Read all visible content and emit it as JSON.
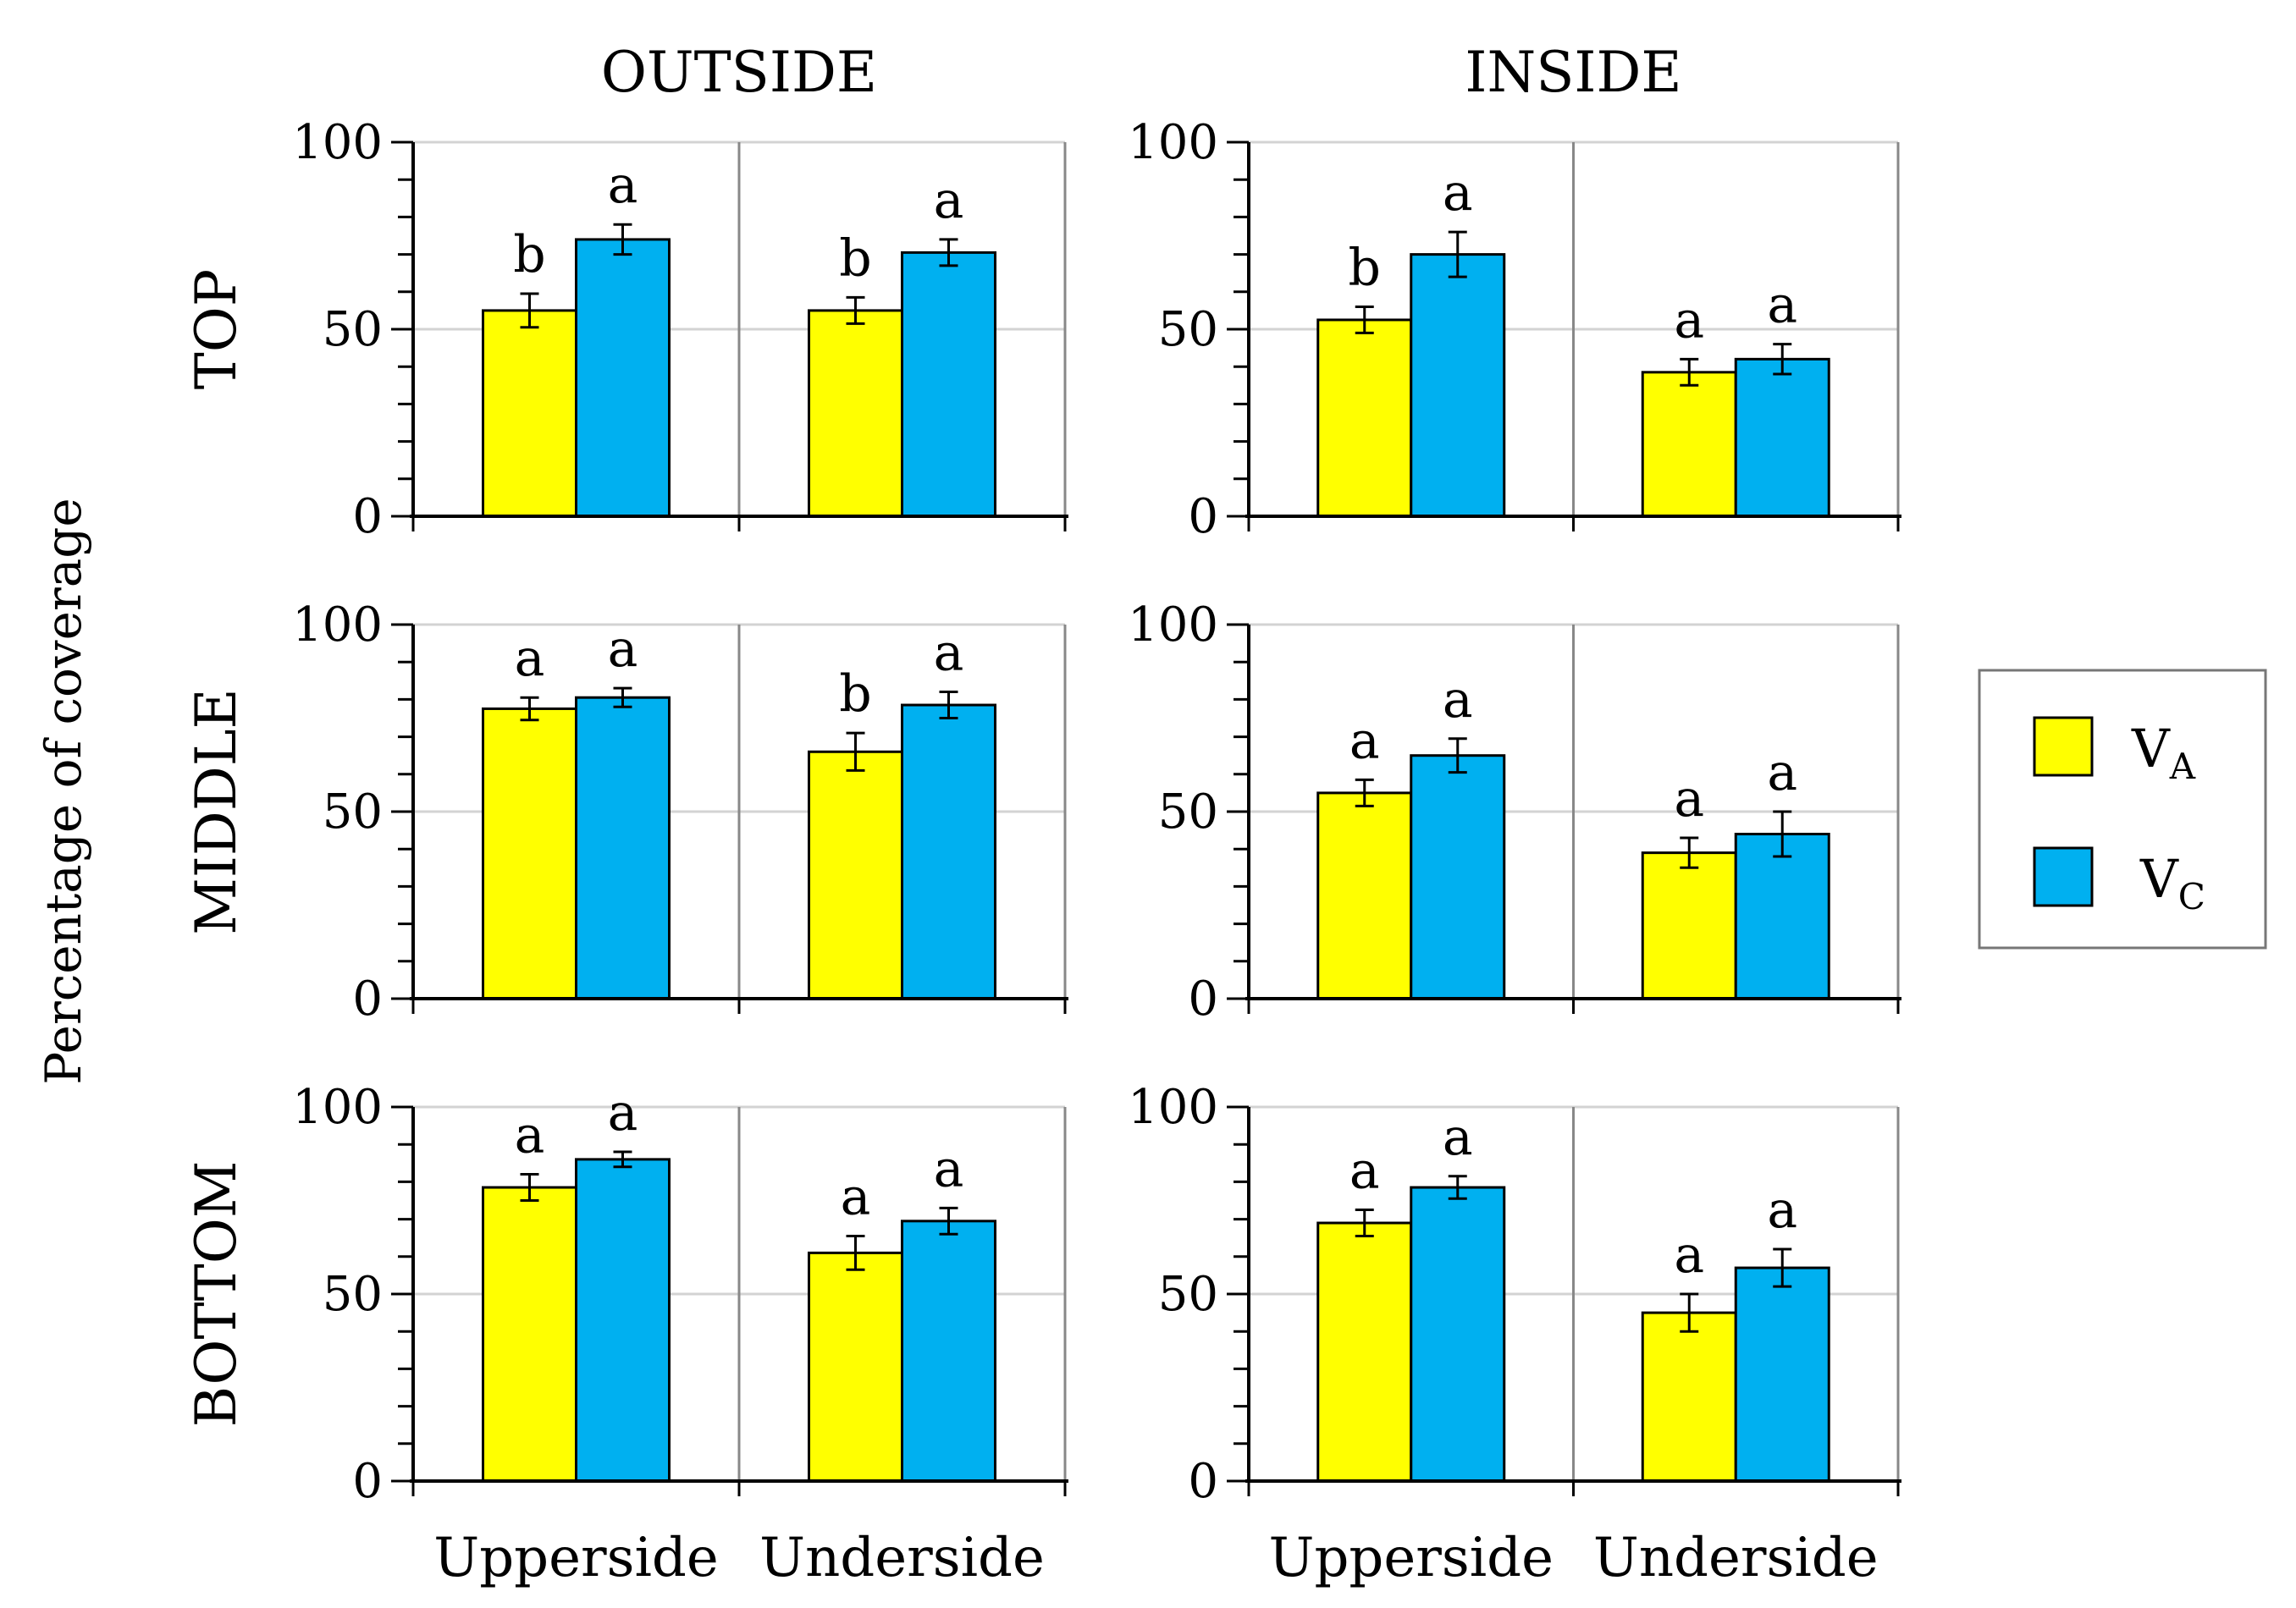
{
  "chart_data": {
    "type": "bar",
    "title": "",
    "ylabel": "Percentage of coverage",
    "ylim": [
      0,
      100
    ],
    "yticks": [
      0,
      50,
      100
    ],
    "col_titles": [
      "OUTSIDE",
      "INSIDE"
    ],
    "row_titles": [
      "TOP",
      "MIDDLE",
      "BOTTOM"
    ],
    "categories": [
      "Upperside",
      "Underside"
    ],
    "legend": [
      {
        "label": "V",
        "sub": "A",
        "color": "#ffff00"
      },
      {
        "label": "V",
        "sub": "C",
        "color": "#00b0f0"
      }
    ],
    "panels": [
      {
        "row": "TOP",
        "col": "OUTSIDE",
        "series": [
          {
            "name": "VA",
            "values": [
              55,
              55
            ],
            "errors": [
              4.5,
              3.5
            ],
            "letters": [
              "b",
              "b"
            ]
          },
          {
            "name": "VC",
            "values": [
              74,
              70.5
            ],
            "errors": [
              4,
              3.5
            ],
            "letters": [
              "a",
              "a"
            ]
          }
        ]
      },
      {
        "row": "TOP",
        "col": "INSIDE",
        "series": [
          {
            "name": "VA",
            "values": [
              52.5,
              38.5
            ],
            "errors": [
              3.5,
              3.5
            ],
            "letters": [
              "b",
              "a"
            ]
          },
          {
            "name": "VC",
            "values": [
              70,
              42
            ],
            "errors": [
              6,
              4
            ],
            "letters": [
              "a",
              "a"
            ]
          }
        ]
      },
      {
        "row": "MIDDLE",
        "col": "OUTSIDE",
        "series": [
          {
            "name": "VA",
            "values": [
              77.5,
              66
            ],
            "errors": [
              3,
              5
            ],
            "letters": [
              "a",
              "b"
            ]
          },
          {
            "name": "VC",
            "values": [
              80.5,
              78.5
            ],
            "errors": [
              2.5,
              3.5
            ],
            "letters": [
              "a",
              "a"
            ]
          }
        ]
      },
      {
        "row": "MIDDLE",
        "col": "INSIDE",
        "series": [
          {
            "name": "VA",
            "values": [
              55,
              39
            ],
            "errors": [
              3.5,
              4
            ],
            "letters": [
              "a",
              "a"
            ]
          },
          {
            "name": "VC",
            "values": [
              65,
              44
            ],
            "errors": [
              4.5,
              6
            ],
            "letters": [
              "a",
              "a"
            ]
          }
        ]
      },
      {
        "row": "BOTTOM",
        "col": "OUTSIDE",
        "series": [
          {
            "name": "VA",
            "values": [
              78.5,
              61
            ],
            "errors": [
              3.5,
              4.5
            ],
            "letters": [
              "a",
              "a"
            ]
          },
          {
            "name": "VC",
            "values": [
              86,
              69.5
            ],
            "errors": [
              2,
              3.5
            ],
            "letters": [
              "a",
              "a"
            ]
          }
        ]
      },
      {
        "row": "BOTTOM",
        "col": "INSIDE",
        "series": [
          {
            "name": "VA",
            "values": [
              69,
              45
            ],
            "errors": [
              3.5,
              5
            ],
            "letters": [
              "a",
              "a"
            ]
          },
          {
            "name": "VC",
            "values": [
              78.5,
              57
            ],
            "errors": [
              3,
              5
            ],
            "letters": [
              "a",
              "a"
            ]
          }
        ]
      }
    ]
  }
}
